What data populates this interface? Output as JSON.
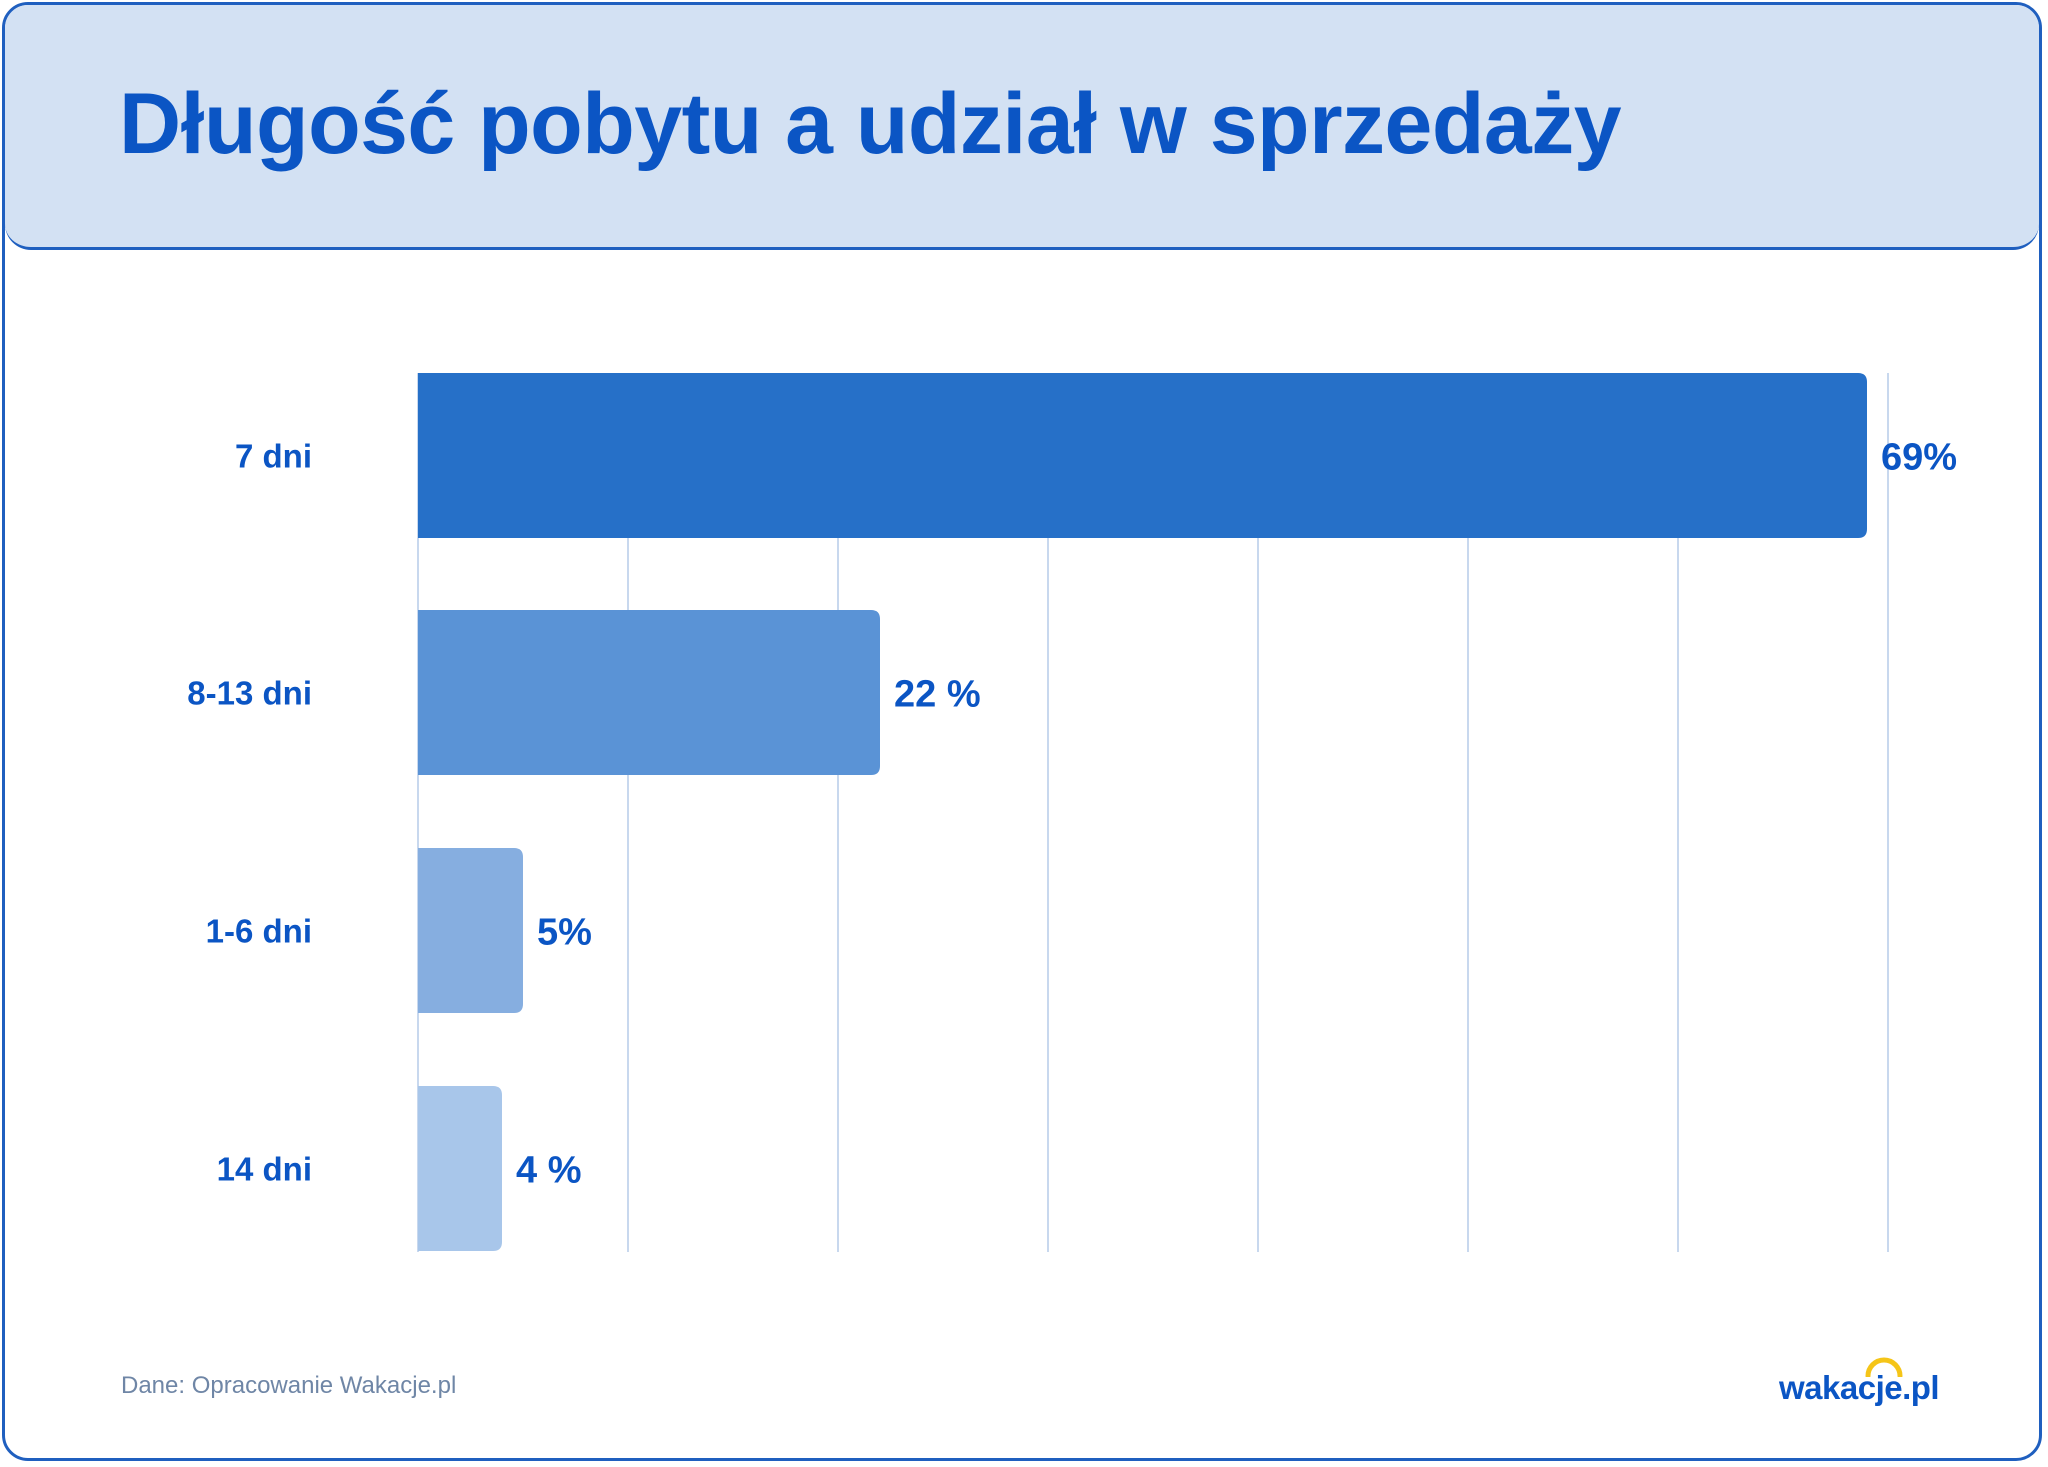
{
  "title": "Długość pobytu a udział w sprzedaży",
  "source": "Dane: Opracowanie Wakacje.pl",
  "logo": "wakacje.pl",
  "colors": {
    "title": "#0b55c4",
    "header_bg": "#d3e1f3",
    "border": "#1f5fbf",
    "grid": "#c8d8ee",
    "bars": [
      "#2670c8",
      "#5a93d6",
      "#86aee0",
      "#a8c6ea"
    ],
    "logo_sun": "#f5c518"
  },
  "chart_data": {
    "type": "bar",
    "orientation": "horizontal",
    "categories": [
      "7 dni",
      "8-13 dni",
      "1-6 dni",
      "14 dni"
    ],
    "values": [
      69,
      22,
      5,
      4
    ],
    "value_labels": [
      "69%",
      "22 %",
      "5%",
      "4 %"
    ],
    "unit": "%",
    "xlim": [
      0,
      70
    ],
    "grid": true,
    "title": "Długość pobytu a udział w sprzedaży"
  }
}
